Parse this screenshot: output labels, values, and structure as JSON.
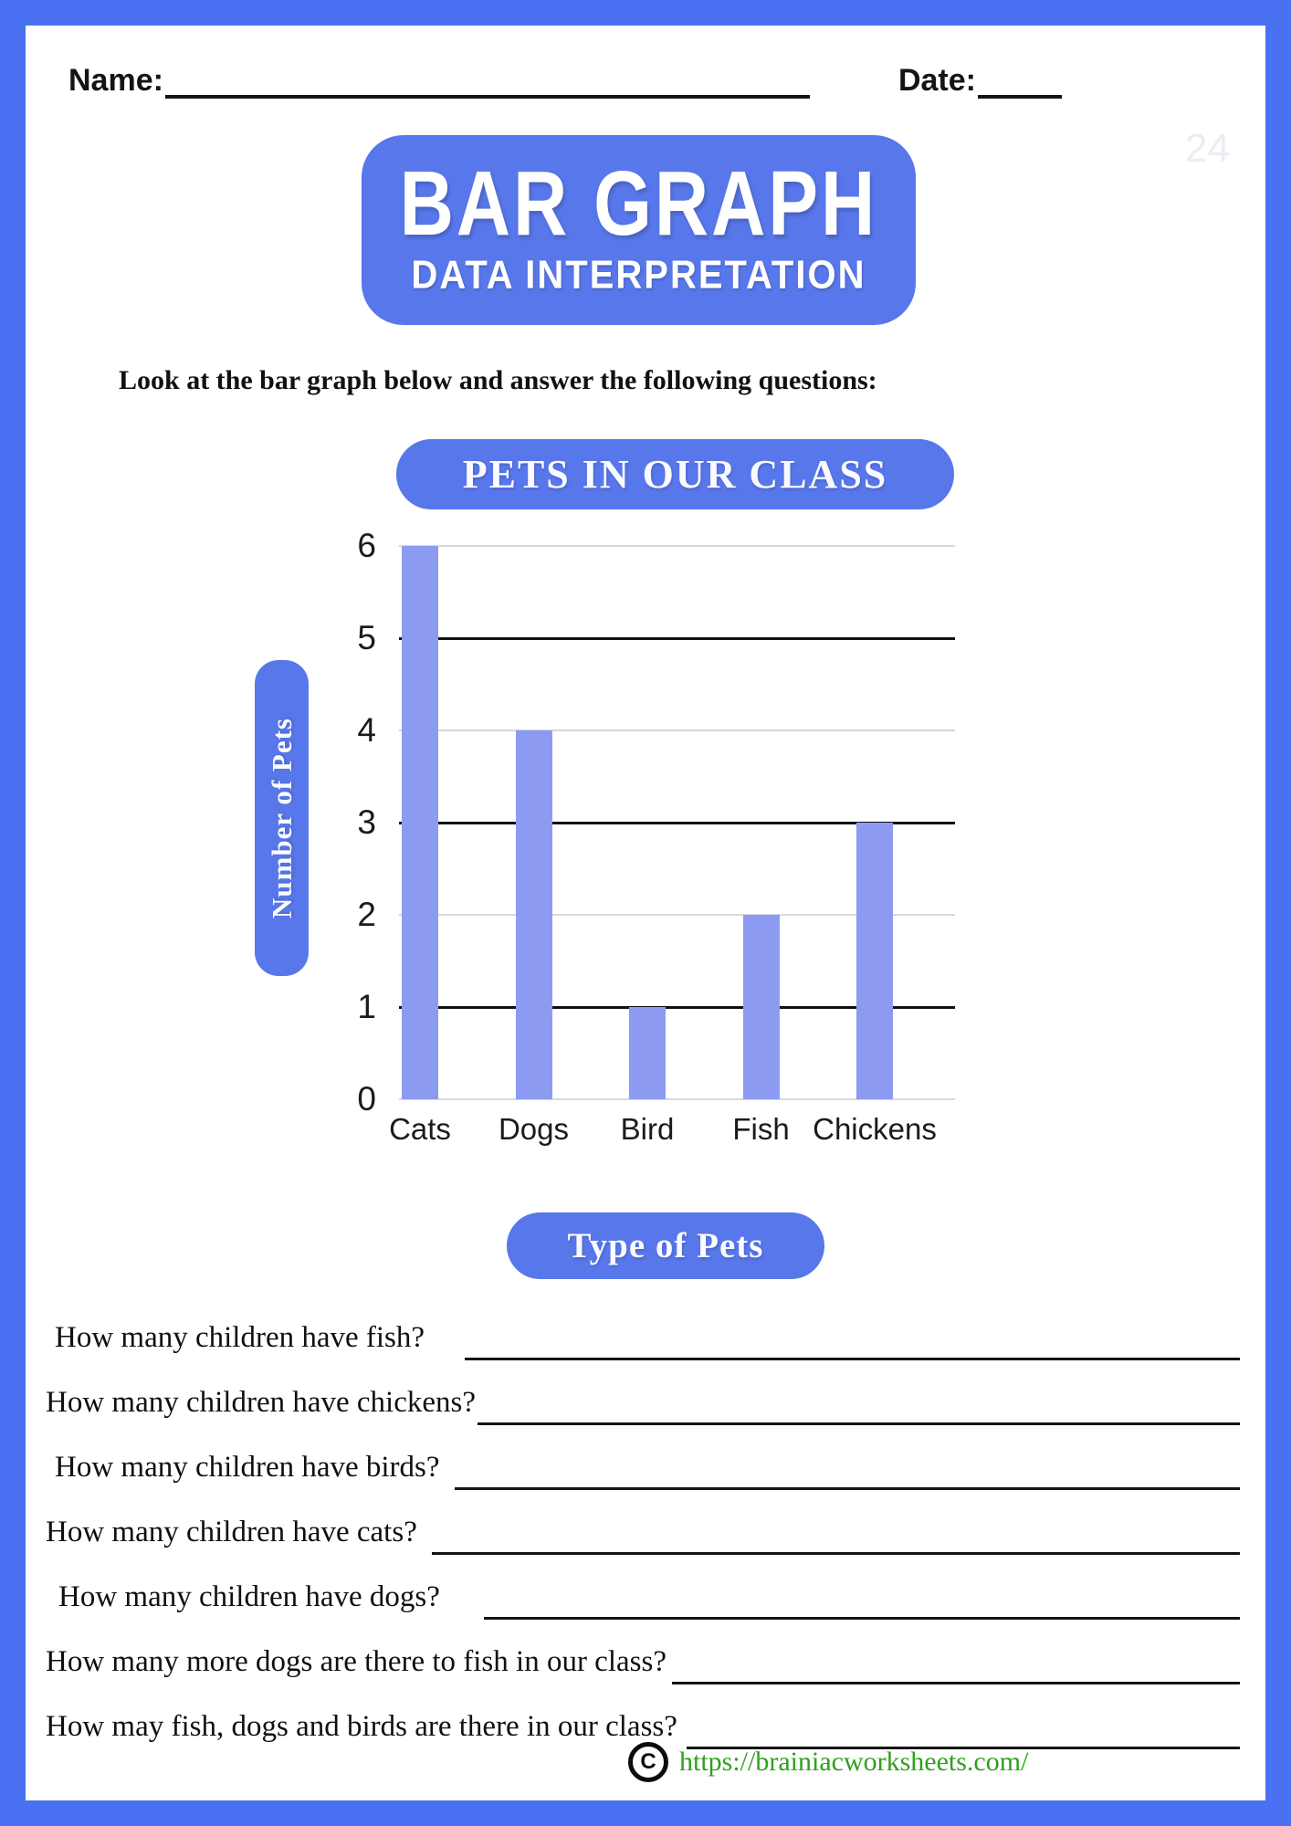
{
  "page": {
    "name_label": "Name:",
    "date_label": "Date:",
    "watermark": "24",
    "title_line1": "BAR GRAPH",
    "title_line2": "DATA INTERPRETATION",
    "instruction": "Look at the bar graph below and answer the following questions:",
    "copyright_symbol": "C",
    "footer_link": "https://brainiacworksheets.com/"
  },
  "colors": {
    "frame_blue": "#4b71f3",
    "pill_blue": "#5777ea",
    "bar_blue": "#8c9bf1",
    "grid_light": "#d9d9d9",
    "grid_dark": "#10101c",
    "link_green": "#2ea11b"
  },
  "chart_data": {
    "type": "bar",
    "title": "PETS IN OUR CLASS",
    "categories": [
      "Cats",
      "Dogs",
      "Bird",
      "Fish",
      "Chickens"
    ],
    "values": [
      6,
      4,
      1,
      2,
      3
    ],
    "xlabel": "Type of Pets",
    "ylabel": "Number of Pets",
    "ylim": [
      0,
      6
    ],
    "yticks": [
      0,
      1,
      2,
      3,
      4,
      5,
      6
    ],
    "grid": true,
    "legend": false,
    "bar_color": "#8c9bf1"
  },
  "questions": [
    "How many children have fish?",
    "How many children have chickens?",
    "How many children have birds?",
    "How many children have cats?",
    "How many children have dogs?",
    "How many more dogs are there to fish in our class?",
    "How may fish, dogs and birds are there in our class?"
  ]
}
